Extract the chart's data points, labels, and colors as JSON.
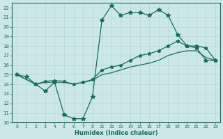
{
  "xlabel": "Humidex (Indice chaleur)",
  "bg_color": "#cce8e4",
  "line_color": "#1a6b5a",
  "grid_color": "#b0d8d4",
  "xtick_labels": [
    "0",
    "1",
    "2",
    "3",
    "4",
    "5",
    "6",
    "7",
    "8",
    "11",
    "12",
    "13",
    "14",
    "15",
    "16",
    "17",
    "18",
    "19",
    "20",
    "21",
    "22",
    "23"
  ],
  "ytick_labels": [
    "10",
    "11",
    "12",
    "13",
    "14",
    "15",
    "16",
    "17",
    "18",
    "19",
    "20",
    "21",
    "22"
  ],
  "ytick_vals": [
    10,
    11,
    12,
    13,
    14,
    15,
    16,
    17,
    18,
    19,
    20,
    21,
    22
  ],
  "line1_x": [
    0,
    1,
    2,
    3,
    4,
    5,
    6,
    7,
    8,
    9,
    10,
    11,
    12,
    13,
    14,
    15,
    16,
    17,
    18,
    19,
    20,
    21
  ],
  "line1_y": [
    15.0,
    14.8,
    14.0,
    13.3,
    14.2,
    10.8,
    10.4,
    10.4,
    12.7,
    20.7,
    22.2,
    21.2,
    21.5,
    21.5,
    21.2,
    21.8,
    21.2,
    19.2,
    18.0,
    17.8,
    16.5,
    16.5
  ],
  "line2_x": [
    0,
    2,
    3,
    4,
    5,
    6,
    7,
    8,
    9,
    10,
    11,
    12,
    13,
    14,
    15,
    16,
    17,
    18,
    19,
    20,
    21
  ],
  "line2_y": [
    15.0,
    14.0,
    14.3,
    14.4,
    14.3,
    14.0,
    14.2,
    14.5,
    15.5,
    15.8,
    16.0,
    16.5,
    17.0,
    17.2,
    17.5,
    18.0,
    18.5,
    18.0,
    18.0,
    17.8,
    16.5
  ],
  "line3_x": [
    0,
    2,
    3,
    4,
    5,
    6,
    7,
    8,
    9,
    10,
    11,
    12,
    13,
    14,
    15,
    16,
    17,
    18,
    19,
    20,
    21
  ],
  "line3_y": [
    15.0,
    14.0,
    14.2,
    14.2,
    14.2,
    14.0,
    14.2,
    14.4,
    15.0,
    15.2,
    15.5,
    15.8,
    16.0,
    16.2,
    16.5,
    17.0,
    17.3,
    17.5,
    17.5,
    16.8,
    16.5
  ]
}
